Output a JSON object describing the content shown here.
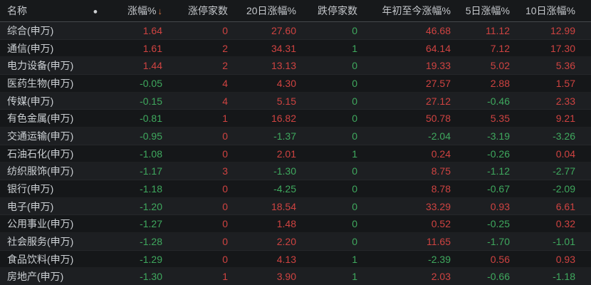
{
  "colors": {
    "up": "#cf4341",
    "down": "#3fa95e",
    "header_text": "#c4c7cb",
    "name_text": "#ccd0d4",
    "sort_arrow": "#d0713f",
    "background": "#17191b"
  },
  "table": {
    "sort_icon": "↓",
    "dot_icon": "●",
    "columns": [
      {
        "label": "名称",
        "align": "left"
      },
      {
        "label": "●",
        "align": "center"
      },
      {
        "label": "涨幅%",
        "align": "right",
        "sorted": "desc"
      },
      {
        "label": "涨停家数",
        "align": "right"
      },
      {
        "label": "20日涨幅%",
        "align": "right"
      },
      {
        "label": "跌停家数",
        "align": "right"
      },
      {
        "label": "年初至今涨幅%",
        "align": "right"
      },
      {
        "label": "5日涨幅%",
        "align": "right"
      },
      {
        "label": "10日涨幅%",
        "align": "right"
      }
    ],
    "rows": [
      {
        "name": "综合(申万)",
        "values": [
          "1.64",
          "0",
          "27.60",
          "0",
          "46.68",
          "11.12",
          "12.99"
        ],
        "trends": [
          "up",
          "up",
          "up",
          "down",
          "up",
          "up",
          "up"
        ]
      },
      {
        "name": "通信(申万)",
        "values": [
          "1.61",
          "2",
          "34.31",
          "1",
          "64.14",
          "7.12",
          "17.30"
        ],
        "trends": [
          "up",
          "up",
          "up",
          "down",
          "up",
          "up",
          "up"
        ]
      },
      {
        "name": "电力设备(申万)",
        "values": [
          "1.44",
          "2",
          "13.13",
          "0",
          "19.33",
          "5.02",
          "5.36"
        ],
        "trends": [
          "up",
          "up",
          "up",
          "down",
          "up",
          "up",
          "up"
        ]
      },
      {
        "name": "医药生物(申万)",
        "values": [
          "-0.05",
          "4",
          "4.30",
          "0",
          "27.57",
          "2.88",
          "1.57"
        ],
        "trends": [
          "down",
          "up",
          "up",
          "down",
          "up",
          "up",
          "up"
        ]
      },
      {
        "name": "传媒(申万)",
        "values": [
          "-0.15",
          "4",
          "5.15",
          "0",
          "27.12",
          "-0.46",
          "2.33"
        ],
        "trends": [
          "down",
          "up",
          "up",
          "down",
          "up",
          "down",
          "up"
        ]
      },
      {
        "name": "有色金属(申万)",
        "values": [
          "-0.81",
          "1",
          "16.82",
          "0",
          "50.78",
          "5.35",
          "9.21"
        ],
        "trends": [
          "down",
          "up",
          "up",
          "down",
          "up",
          "up",
          "up"
        ]
      },
      {
        "name": "交通运输(申万)",
        "values": [
          "-0.95",
          "0",
          "-1.37",
          "0",
          "-2.04",
          "-3.19",
          "-3.26"
        ],
        "trends": [
          "down",
          "up",
          "down",
          "down",
          "down",
          "down",
          "down"
        ]
      },
      {
        "name": "石油石化(申万)",
        "values": [
          "-1.08",
          "0",
          "2.01",
          "1",
          "0.24",
          "-0.26",
          "0.04"
        ],
        "trends": [
          "down",
          "up",
          "up",
          "down",
          "up",
          "down",
          "up"
        ]
      },
      {
        "name": "纺织服饰(申万)",
        "values": [
          "-1.17",
          "3",
          "-1.30",
          "0",
          "8.75",
          "-1.12",
          "-2.77"
        ],
        "trends": [
          "down",
          "up",
          "down",
          "down",
          "up",
          "down",
          "down"
        ]
      },
      {
        "name": "银行(申万)",
        "values": [
          "-1.18",
          "0",
          "-4.25",
          "0",
          "8.78",
          "-0.67",
          "-2.09"
        ],
        "trends": [
          "down",
          "up",
          "down",
          "down",
          "up",
          "down",
          "down"
        ]
      },
      {
        "name": "电子(申万)",
        "values": [
          "-1.20",
          "0",
          "18.54",
          "0",
          "33.29",
          "0.93",
          "6.61"
        ],
        "trends": [
          "down",
          "up",
          "up",
          "down",
          "up",
          "up",
          "up"
        ]
      },
      {
        "name": "公用事业(申万)",
        "values": [
          "-1.27",
          "0",
          "1.48",
          "0",
          "0.52",
          "-0.25",
          "0.32"
        ],
        "trends": [
          "down",
          "up",
          "up",
          "down",
          "up",
          "down",
          "up"
        ]
      },
      {
        "name": "社会服务(申万)",
        "values": [
          "-1.28",
          "0",
          "2.20",
          "0",
          "11.65",
          "-1.70",
          "-1.01"
        ],
        "trends": [
          "down",
          "up",
          "up",
          "down",
          "up",
          "down",
          "down"
        ]
      },
      {
        "name": "食品饮料(申万)",
        "values": [
          "-1.29",
          "0",
          "4.13",
          "1",
          "-2.39",
          "0.56",
          "0.93"
        ],
        "trends": [
          "down",
          "up",
          "up",
          "down",
          "down",
          "up",
          "up"
        ]
      },
      {
        "name": "房地产(申万)",
        "values": [
          "-1.30",
          "1",
          "3.90",
          "1",
          "2.03",
          "-0.66",
          "-1.18"
        ],
        "trends": [
          "down",
          "up",
          "up",
          "down",
          "up",
          "down",
          "down"
        ]
      }
    ]
  }
}
